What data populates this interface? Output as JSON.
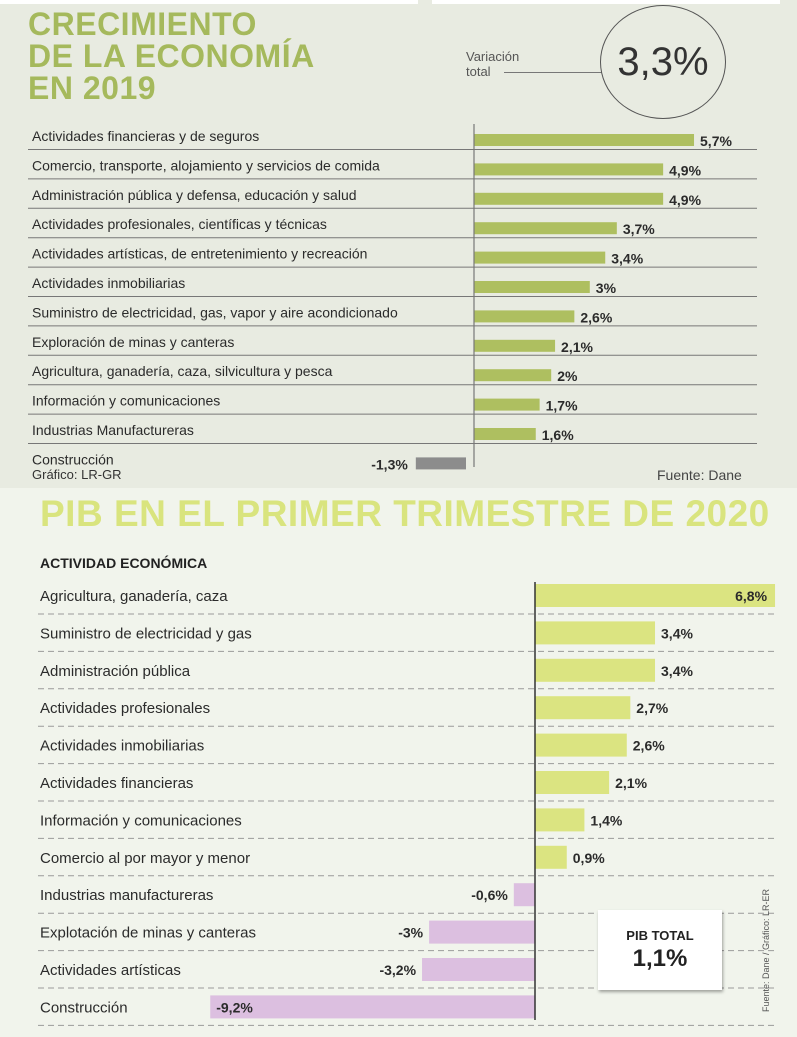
{
  "chart_data": [
    {
      "type": "bar",
      "orientation": "horizontal",
      "title": "CRECIMIENTO DE LA ECONOMÍA EN 2019",
      "title_lines": [
        "CRECIMIENTO",
        "DE LA ECONOMÍA",
        "EN 2019"
      ],
      "unit": "%",
      "total_label": "Variación total",
      "total_value": "3,3%",
      "categories": [
        "Actividades financieras y de seguros",
        "Comercio, transporte, alojamiento y servicios de comida",
        "Administración pública y defensa, educación y salud",
        "Actividades profesionales, científicas y técnicas",
        "Actividades artísticas, de entretenimiento y recreación",
        "Actividades inmobiliarias",
        "Suministro de electricidad, gas, vapor y aire acondicionado",
        "Exploración de minas y canteras",
        "Agricultura, ganadería, caza, silvicultura y pesca",
        "Información y comunicaciones",
        "Industrias Manufactureras",
        "Construcción"
      ],
      "values": [
        5.7,
        4.9,
        4.9,
        3.7,
        3.4,
        3,
        2.6,
        2.1,
        2,
        1.7,
        1.6,
        -1.3
      ],
      "value_labels": [
        "5,7%",
        "4,9%",
        "4,9%",
        "3,7%",
        "3,4%",
        "3%",
        "2,6%",
        "2,1%",
        "2%",
        "1,7%",
        "1,6%",
        "-1,3%"
      ],
      "credit": "Gráfico: LR-GR",
      "source": "Fuente: Dane",
      "colors": {
        "positive": "#aebf60",
        "negative": "#8c8c8c",
        "title": "#a5b95c"
      }
    },
    {
      "type": "bar",
      "orientation": "horizontal",
      "title": "PIB EN EL PRIMER TRIMESTRE DE 2020",
      "header": "ACTIVIDAD ECONÓMICA",
      "unit": "%",
      "categories": [
        "Agricultura, ganadería, caza",
        "Suministro de electricidad y gas",
        "Administración pública",
        "Actividades profesionales",
        "Actividades inmobiliarias",
        "Actividades financieras",
        "Información y comunicaciones",
        "Comercio al por mayor y menor",
        "Industrias manufactureras",
        "Explotación de minas y canteras",
        "Actividades artísticas",
        "Construcción"
      ],
      "values": [
        6.8,
        3.4,
        3.4,
        2.7,
        2.6,
        2.1,
        1.4,
        0.9,
        -0.6,
        -3,
        -3.2,
        -9.2
      ],
      "value_labels": [
        "6,8%",
        "3,4%",
        "3,4%",
        "2,7%",
        "2,6%",
        "2,1%",
        "1,4%",
        "0,9%",
        "-0,6%",
        "-3%",
        "-3,2%",
        "-9,2%"
      ],
      "total_label": "PIB TOTAL",
      "total_value": "1,1%",
      "credit": "Fuente: Dane / Gráfico: LR-ER",
      "colors": {
        "positive": "#dbe481",
        "negative": "#dcbfe0",
        "title": "#d9e47e"
      }
    }
  ]
}
